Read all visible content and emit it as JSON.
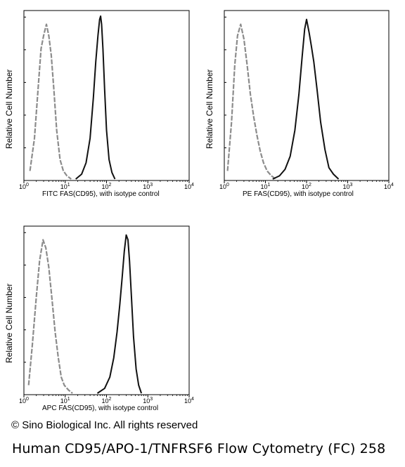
{
  "chart_data": [
    {
      "type": "line",
      "ylabel": "Relative Cell Number",
      "xlabel": "FITC  FAS(CD95),  with isotype control",
      "xscale": "log",
      "xlim": [
        1,
        10000
      ],
      "x_ticks": [
        "10",
        "10",
        "10",
        "10",
        "10"
      ],
      "x_tick_exponents": [
        "0",
        "1",
        "2",
        "3",
        "4"
      ],
      "series": [
        {
          "role": "isotype control",
          "color": "#8c8c8c",
          "style": "dashed",
          "x": [
            1.4,
            1.8,
            2.2,
            2.6,
            3.0,
            3.5,
            4.0,
            4.6,
            5.3,
            6.2,
            7.5,
            9.0,
            11,
            14
          ],
          "y": [
            0.05,
            0.25,
            0.55,
            0.8,
            0.88,
            0.95,
            0.88,
            0.76,
            0.55,
            0.3,
            0.12,
            0.05,
            0.02,
            0.0
          ]
        },
        {
          "role": "FAS(CD95)",
          "color": "#111111",
          "style": "solid",
          "x": [
            18,
            25,
            32,
            40,
            48,
            55,
            62,
            68,
            72,
            76,
            82,
            90,
            100,
            115,
            135,
            160
          ],
          "y": [
            0.0,
            0.03,
            0.1,
            0.25,
            0.5,
            0.72,
            0.88,
            0.98,
            1.0,
            0.95,
            0.8,
            0.55,
            0.3,
            0.12,
            0.04,
            0.0
          ]
        }
      ]
    },
    {
      "type": "line",
      "ylabel": "Relative Cell Number",
      "xlabel": "PE  FAS(CD95),  with isotype control",
      "xscale": "log",
      "xlim": [
        1,
        10000
      ],
      "x_ticks": [
        "10",
        "10",
        "10",
        "10",
        "10"
      ],
      "x_tick_exponents": [
        "0",
        "1",
        "2",
        "3",
        "4"
      ],
      "series": [
        {
          "role": "isotype control",
          "color": "#8c8c8c",
          "style": "dashed",
          "x": [
            1.2,
            1.5,
            1.8,
            2.1,
            2.5,
            3.0,
            3.6,
            4.3,
            5.2,
            6.2,
            7.5,
            9.0,
            11,
            14,
            18
          ],
          "y": [
            0.05,
            0.35,
            0.7,
            0.88,
            0.95,
            0.86,
            0.7,
            0.52,
            0.38,
            0.27,
            0.17,
            0.1,
            0.05,
            0.02,
            0.0
          ]
        },
        {
          "role": "FAS(CD95)",
          "color": "#111111",
          "style": "solid",
          "x": [
            15,
            22,
            30,
            40,
            52,
            65,
            78,
            90,
            100,
            115,
            130,
            150,
            180,
            220,
            280,
            350,
            450,
            600
          ],
          "y": [
            0.0,
            0.02,
            0.06,
            0.14,
            0.3,
            0.52,
            0.75,
            0.92,
            0.98,
            0.9,
            0.82,
            0.72,
            0.55,
            0.35,
            0.18,
            0.07,
            0.03,
            0.0
          ]
        }
      ]
    },
    {
      "type": "line",
      "ylabel": "Relative Cell Number",
      "xlabel": "APC FAS(CD95), with isotype control",
      "xscale": "log",
      "xlim": [
        1,
        10000
      ],
      "x_ticks": [
        "10",
        "10",
        "10",
        "10",
        "10"
      ],
      "x_tick_exponents": [
        "0",
        "1",
        "2",
        "3",
        "4"
      ],
      "series": [
        {
          "role": "isotype control",
          "color": "#8c8c8c",
          "style": "dashed",
          "x": [
            1.3,
            1.6,
            2.0,
            2.4,
            2.9,
            3.4,
            4.0,
            4.8,
            5.7,
            6.8,
            8.0,
            9.5,
            12,
            15
          ],
          "y": [
            0.05,
            0.3,
            0.6,
            0.82,
            0.95,
            0.9,
            0.78,
            0.58,
            0.38,
            0.22,
            0.1,
            0.05,
            0.02,
            0.0
          ]
        },
        {
          "role": "FAS(CD95)",
          "color": "#111111",
          "style": "solid",
          "x": [
            60,
            90,
            120,
            150,
            180,
            210,
            240,
            270,
            300,
            330,
            360,
            400,
            450,
            520,
            600,
            700
          ],
          "y": [
            0.0,
            0.03,
            0.1,
            0.22,
            0.38,
            0.55,
            0.72,
            0.88,
            0.98,
            0.95,
            0.82,
            0.6,
            0.35,
            0.15,
            0.05,
            0.0
          ]
        }
      ]
    }
  ],
  "copyright": "© Sino Biological Inc. All rights reserved",
  "caption": "Human CD95/APO-1/TNFRSF6 Flow Cytometry (FC) 258"
}
